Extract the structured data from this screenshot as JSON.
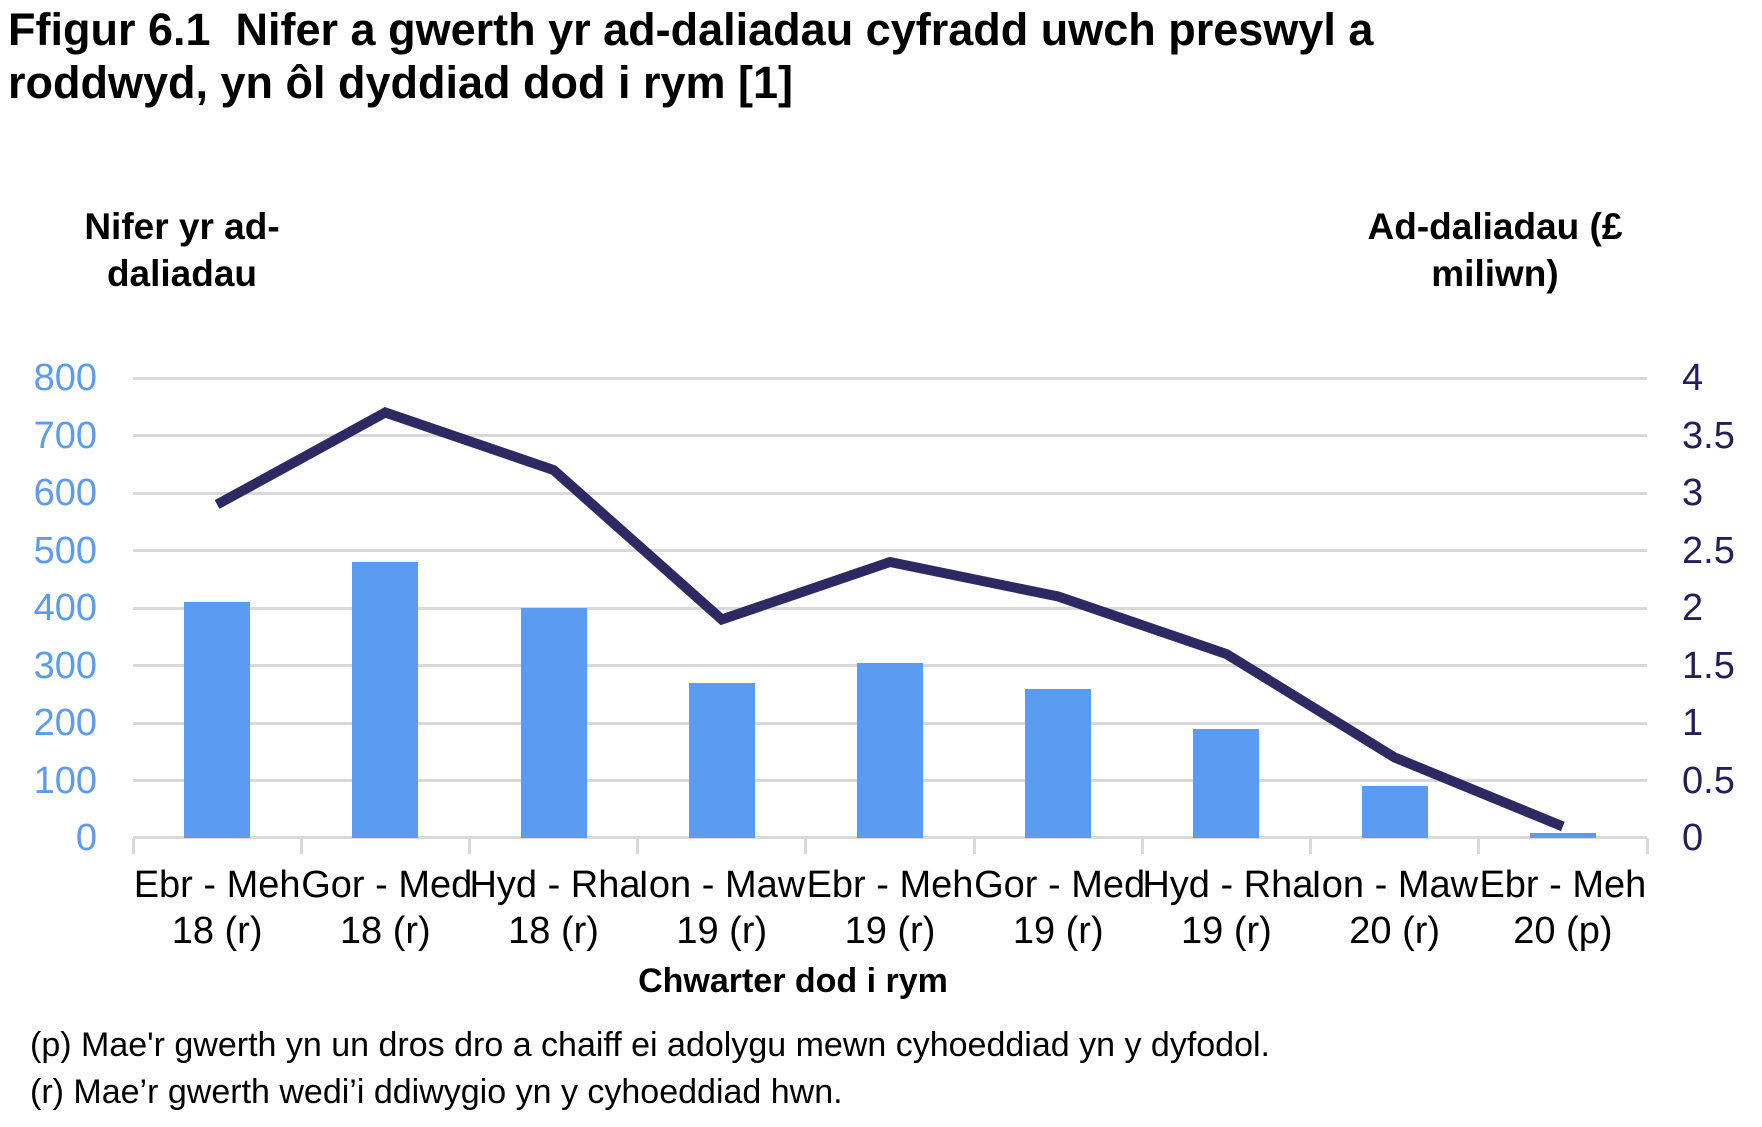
{
  "title": "Ffigur 6.1  Nifer a gwerth yr ad-daliadau cyfradd uwch preswyl a roddwyd, yn ôl dyddiad dod i rym [1]",
  "chart_data": {
    "type": "bar+line",
    "categories": [
      {
        "period": "Ebr - Meh",
        "year": "18 (r)"
      },
      {
        "period": "Gor - Med",
        "year": "18 (r)"
      },
      {
        "period": "Hyd - Rha",
        "year": "18 (r)"
      },
      {
        "period": "Ion - Maw",
        "year": "19 (r)"
      },
      {
        "period": "Ebr - Meh",
        "year": "19 (r)"
      },
      {
        "period": "Gor - Med",
        "year": "19 (r)"
      },
      {
        "period": "Hyd - Rha",
        "year": "19 (r)"
      },
      {
        "period": "Ion - Maw",
        "year": "20 (r)"
      },
      {
        "period": "Ebr - Meh",
        "year": "20 (p)"
      }
    ],
    "series": [
      {
        "name": "Nifer yr ad-daliadau",
        "type": "bar",
        "axis": "left",
        "values": [
          410,
          480,
          400,
          270,
          305,
          260,
          190,
          90,
          8
        ]
      },
      {
        "name": "Ad-daliadau (£ miliwn)",
        "type": "line",
        "axis": "right",
        "values": [
          2.9,
          3.7,
          3.2,
          1.9,
          2.4,
          2.1,
          1.6,
          0.7,
          0.1
        ]
      }
    ],
    "left_axis": {
      "title_lines": [
        "Nifer yr ad-",
        "daliadau"
      ],
      "min": 0,
      "max": 800,
      "step": 100,
      "ticks": [
        "800",
        "700",
        "600",
        "500",
        "400",
        "300",
        "200",
        "100",
        "0"
      ]
    },
    "right_axis": {
      "title_lines": [
        "Ad-daliadau (£",
        "miliwn)"
      ],
      "min": 0,
      "max": 4,
      "step": 0.5,
      "ticks": [
        "4",
        "3.5",
        "3",
        "2.5",
        "2",
        "1.5",
        "1",
        "0.5",
        "0"
      ]
    },
    "xlabel": "Chwarter dod i rym",
    "grid": true,
    "legend": "none"
  },
  "colors": {
    "bar_blue": "#5B9BF0",
    "line_navy": "#2D2963",
    "left_axis_text": "#5B9BF0",
    "right_axis_text": "#221F5B",
    "gridline": "#D9D9D9"
  },
  "footnotes": [
    "(p) Mae'r gwerth yn un dros dro a chaiff ei adolygu mewn cyhoeddiad yn y dyfodol.",
    "(r) Mae’r gwerth wedi’i ddiwygio yn y cyhoeddiad hwn."
  ]
}
